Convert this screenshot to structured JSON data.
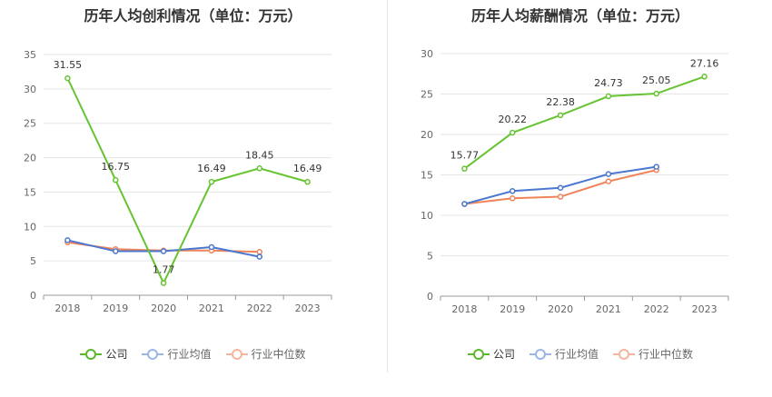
{
  "chart_data": [
    {
      "type": "line",
      "title": "历年人均创利情况（单位：万元）",
      "categories": [
        "2018",
        "2019",
        "2020",
        "2021",
        "2022",
        "2023"
      ],
      "ylim": [
        0,
        35
      ],
      "yticks": [
        0,
        5,
        10,
        15,
        20,
        25,
        30,
        35
      ],
      "grid": true,
      "legend_position": "bottom",
      "series": [
        {
          "name": "公司",
          "color": "#66c431",
          "values": [
            31.55,
            16.75,
            1.77,
            16.49,
            18.45,
            16.49
          ],
          "show_labels": true
        },
        {
          "name": "行业均值",
          "color": "#4a78d0",
          "values": [
            8.0,
            6.4,
            6.4,
            7.0,
            5.6,
            null
          ],
          "show_labels": false
        },
        {
          "name": "行业中位数",
          "color": "#f0845a",
          "values": [
            7.7,
            6.7,
            6.5,
            6.5,
            6.3,
            null
          ],
          "show_labels": false
        }
      ]
    },
    {
      "type": "line",
      "title": "历年人均薪酬情况（单位：万元）",
      "categories": [
        "2018",
        "2019",
        "2020",
        "2021",
        "2022",
        "2023"
      ],
      "ylim": [
        0,
        30
      ],
      "yticks": [
        0,
        5,
        10,
        15,
        20,
        25,
        30
      ],
      "grid": true,
      "legend_position": "bottom",
      "series": [
        {
          "name": "公司",
          "color": "#66c431",
          "values": [
            15.77,
            20.22,
            22.38,
            24.73,
            25.05,
            27.16
          ],
          "show_labels": true
        },
        {
          "name": "行业均值",
          "color": "#4a78d0",
          "values": [
            11.4,
            13.0,
            13.4,
            15.1,
            16.0,
            null
          ],
          "show_labels": false
        },
        {
          "name": "行业中位数",
          "color": "#f0845a",
          "values": [
            11.4,
            12.1,
            12.3,
            14.2,
            15.6,
            null
          ],
          "show_labels": false
        }
      ]
    }
  ],
  "legend": {
    "company": "公司",
    "industry_mean": "行业均值",
    "industry_median": "行业中位数"
  },
  "colors": {
    "company": "#66c431",
    "industry_mean": "#4a78d0",
    "industry_median": "#f0845a",
    "company_legend_ring": "#5ab82a",
    "mean_legend": "#9bb6e6",
    "median_legend": "#f4b59c"
  }
}
